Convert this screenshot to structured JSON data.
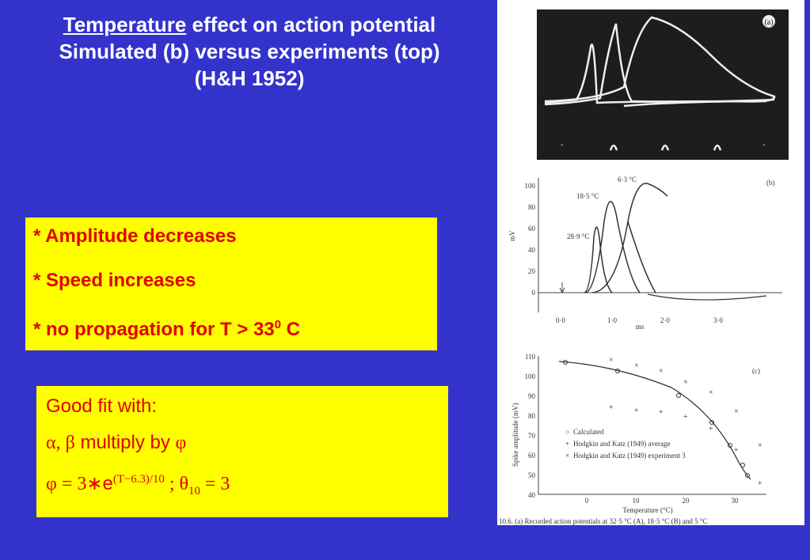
{
  "title": {
    "line1_underlined": "Temperature",
    "line1_rest": " effect on action potential",
    "line2": "Simulated (b) versus experiments (top)",
    "line3": "(H&H 1952)"
  },
  "box1": {
    "item1": "* Amplitude decreases",
    "item2": "* Speed increases",
    "item3_pre": "* no propagation for T > 33",
    "item3_sup": "0",
    "item3_post": " C"
  },
  "box2": {
    "heading": "Good fit with:",
    "line2_symbols": "α, β",
    "line2_text": " multiply by ",
    "line2_phi": "φ",
    "eq_lhs": "φ = 3∗",
    "eq_e": "e",
    "eq_exp": "(T−6.3)/10",
    "eq_mid": " ;  θ",
    "eq_sub": "10",
    "eq_rhs": " = 3"
  },
  "figure": {
    "panel_a": {
      "label": "(a)"
    },
    "panel_b": {
      "label": "(b)",
      "ylabel": "mV",
      "xlabel": "ms",
      "yticks": [
        "100",
        "80",
        "60",
        "40",
        "20",
        "0"
      ],
      "xticks": [
        "0·0",
        "1·0",
        "2·0",
        "3·0"
      ],
      "curve_labels": [
        "6·3 °C",
        "18·5 °C",
        "28·9 °C"
      ]
    },
    "panel_c": {
      "label": "(c)",
      "ylabel": "Spike amplitude  (mV)",
      "xlabel": "Temperature (°C)",
      "yticks": [
        "110",
        "100",
        "90",
        "80",
        "70",
        "60",
        "50",
        "40"
      ],
      "xticks": [
        "0",
        "10",
        "20",
        "30"
      ],
      "legend": [
        "Calculated",
        "Hodgkin and Katz (1949) average",
        "Hodgkin and Katz (1949) experiment 3"
      ],
      "legend_markers": [
        "○",
        "+",
        "×"
      ]
    },
    "caption": "10.6. (a) Recorded action potentials at 32·5 °C (A), 18·5 °C (B) and 5 °C"
  }
}
